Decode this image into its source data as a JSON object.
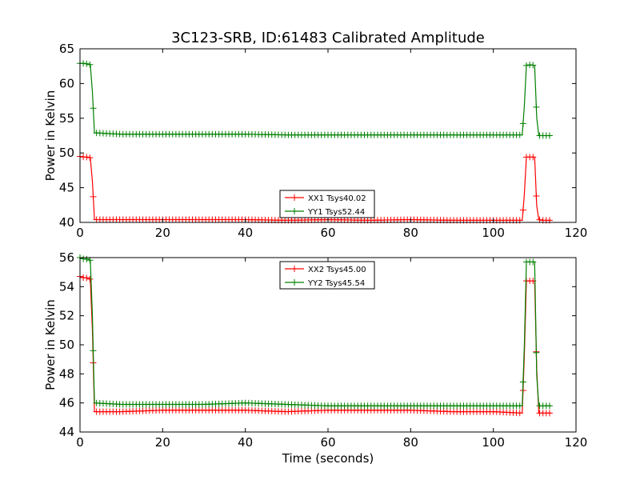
{
  "title": "3C123-SRB, ID:61483 Calibrated Amplitude",
  "xlabel": "Time (seconds)",
  "colors": {
    "red": "#ff0000",
    "green": "#008000"
  },
  "chart_data": [
    {
      "type": "line",
      "title": "3C123-SRB, ID:61483 Calibrated Amplitude",
      "xlabel": "",
      "ylabel": "Power in Kelvin",
      "xlim": [
        0,
        120
      ],
      "ylim": [
        40,
        65
      ],
      "xticks": [
        0,
        20,
        40,
        60,
        80,
        100,
        120
      ],
      "yticks": [
        40,
        45,
        50,
        55,
        60,
        65
      ],
      "grid": false,
      "legend_position": "lower-center",
      "series": [
        {
          "name": "XX1 Tsys40.02",
          "color": "#ff0000",
          "x": [
            0,
            1,
            2,
            2.5,
            3,
            3.5,
            10,
            20,
            30,
            40,
            50,
            60,
            70,
            80,
            90,
            100,
            107,
            107.5,
            108,
            109,
            110,
            110.5,
            111,
            112,
            113,
            114
          ],
          "values": [
            49.5,
            49.4,
            49.4,
            49.3,
            45.9,
            40.4,
            40.4,
            40.4,
            40.4,
            40.4,
            40.3,
            40.4,
            40.3,
            40.4,
            40.3,
            40.3,
            40.3,
            44.0,
            49.4,
            49.4,
            49.4,
            42.4,
            40.4,
            40.3,
            40.3,
            40.3
          ]
        },
        {
          "name": "YY1 Tsys52.44",
          "color": "#008000",
          "x": [
            0,
            1,
            2,
            2.5,
            3,
            3.5,
            10,
            20,
            30,
            40,
            50,
            60,
            70,
            80,
            90,
            100,
            107,
            107.5,
            108,
            109,
            110,
            110.5,
            111,
            112,
            113,
            114
          ],
          "values": [
            62.9,
            62.9,
            62.8,
            62.7,
            58.8,
            52.9,
            52.7,
            52.7,
            52.7,
            52.7,
            52.6,
            52.6,
            52.6,
            52.6,
            52.6,
            52.6,
            52.6,
            56.7,
            62.6,
            62.7,
            62.6,
            55.1,
            52.5,
            52.5,
            52.5,
            52.5
          ]
        }
      ]
    },
    {
      "type": "line",
      "title": "",
      "xlabel": "Time (seconds)",
      "ylabel": "Power in Kelvin",
      "xlim": [
        0,
        120
      ],
      "ylim": [
        44,
        56
      ],
      "xticks": [
        0,
        20,
        40,
        60,
        80,
        100,
        120
      ],
      "yticks": [
        44,
        46,
        48,
        50,
        52,
        54,
        56
      ],
      "grid": false,
      "legend_position": "upper-center",
      "series": [
        {
          "name": "XX2 Tsys45.00",
          "color": "#ff0000",
          "x": [
            0,
            1,
            2,
            2.5,
            3,
            3.5,
            10,
            20,
            30,
            40,
            50,
            60,
            70,
            80,
            90,
            100,
            107,
            107.5,
            108,
            109,
            110,
            110.5,
            111,
            112,
            113,
            114
          ],
          "values": [
            54.7,
            54.6,
            54.6,
            54.5,
            51.0,
            45.4,
            45.4,
            45.5,
            45.5,
            45.5,
            45.4,
            45.5,
            45.5,
            45.5,
            45.4,
            45.4,
            45.3,
            49.2,
            54.4,
            54.4,
            54.4,
            48.3,
            45.3,
            45.3,
            45.3,
            45.3
          ]
        },
        {
          "name": "YY2 Tsys45.54",
          "color": "#008000",
          "x": [
            0,
            1,
            2,
            2.5,
            3,
            3.5,
            10,
            20,
            30,
            40,
            50,
            60,
            70,
            80,
            90,
            100,
            107,
            107.5,
            108,
            109,
            110,
            110.5,
            111,
            112,
            113,
            114
          ],
          "values": [
            56.0,
            55.9,
            55.9,
            55.8,
            52.0,
            46.0,
            45.9,
            45.9,
            45.9,
            46.0,
            45.9,
            45.8,
            45.8,
            45.8,
            45.8,
            45.8,
            45.8,
            49.9,
            55.7,
            55.7,
            55.7,
            47.9,
            45.8,
            45.8,
            45.8,
            45.8
          ]
        }
      ]
    }
  ]
}
